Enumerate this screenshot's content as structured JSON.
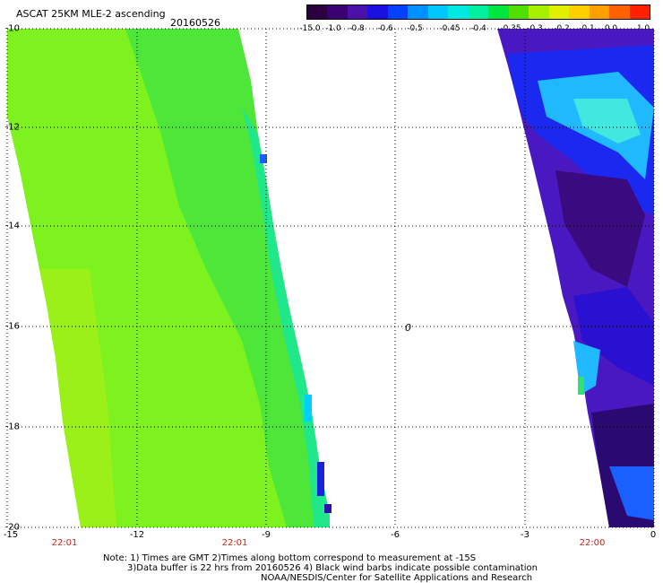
{
  "title": "ASCAT 25KM MLE-2 ascending",
  "date": "20160526",
  "colorbar": {
    "labels": [
      "-15.0",
      "-1.0",
      "-0.8",
      "-0.6",
      "-0.5",
      "-0.45",
      "-0.4",
      "-0.35",
      "-0.3",
      "-0.2",
      "-0.1",
      "0.0",
      "1.0"
    ],
    "colors": [
      "#2a0040",
      "#3b0070",
      "#4a10a8",
      "#1a10e0",
      "#0040ff",
      "#0090ff",
      "#00c8ff",
      "#00e8e0",
      "#00f0a0",
      "#00e640",
      "#50e000",
      "#a8f000",
      "#e0f000",
      "#ffd000",
      "#ffa000",
      "#ff6000",
      "#ff2000"
    ]
  },
  "axes": {
    "y_labels": [
      "-10",
      "-12",
      "-14",
      "-16",
      "-18",
      "-20"
    ],
    "x_labels": [
      "-15",
      "-12",
      "-9",
      "-6",
      "-3",
      "0"
    ]
  },
  "times": [
    "22:01",
    "22:01",
    "22:00"
  ],
  "marker": "0",
  "notes": {
    "line1": "Note: 1) Times are GMT 2)Times along bottom correspond to measurement at -15S",
    "line2": "3)Data buffer is 22 hrs from 20160526 4) Black wind barbs indicate possible contamination",
    "line3": "NOAA/NESDIS/Center for Satellite Applications and Research"
  }
}
